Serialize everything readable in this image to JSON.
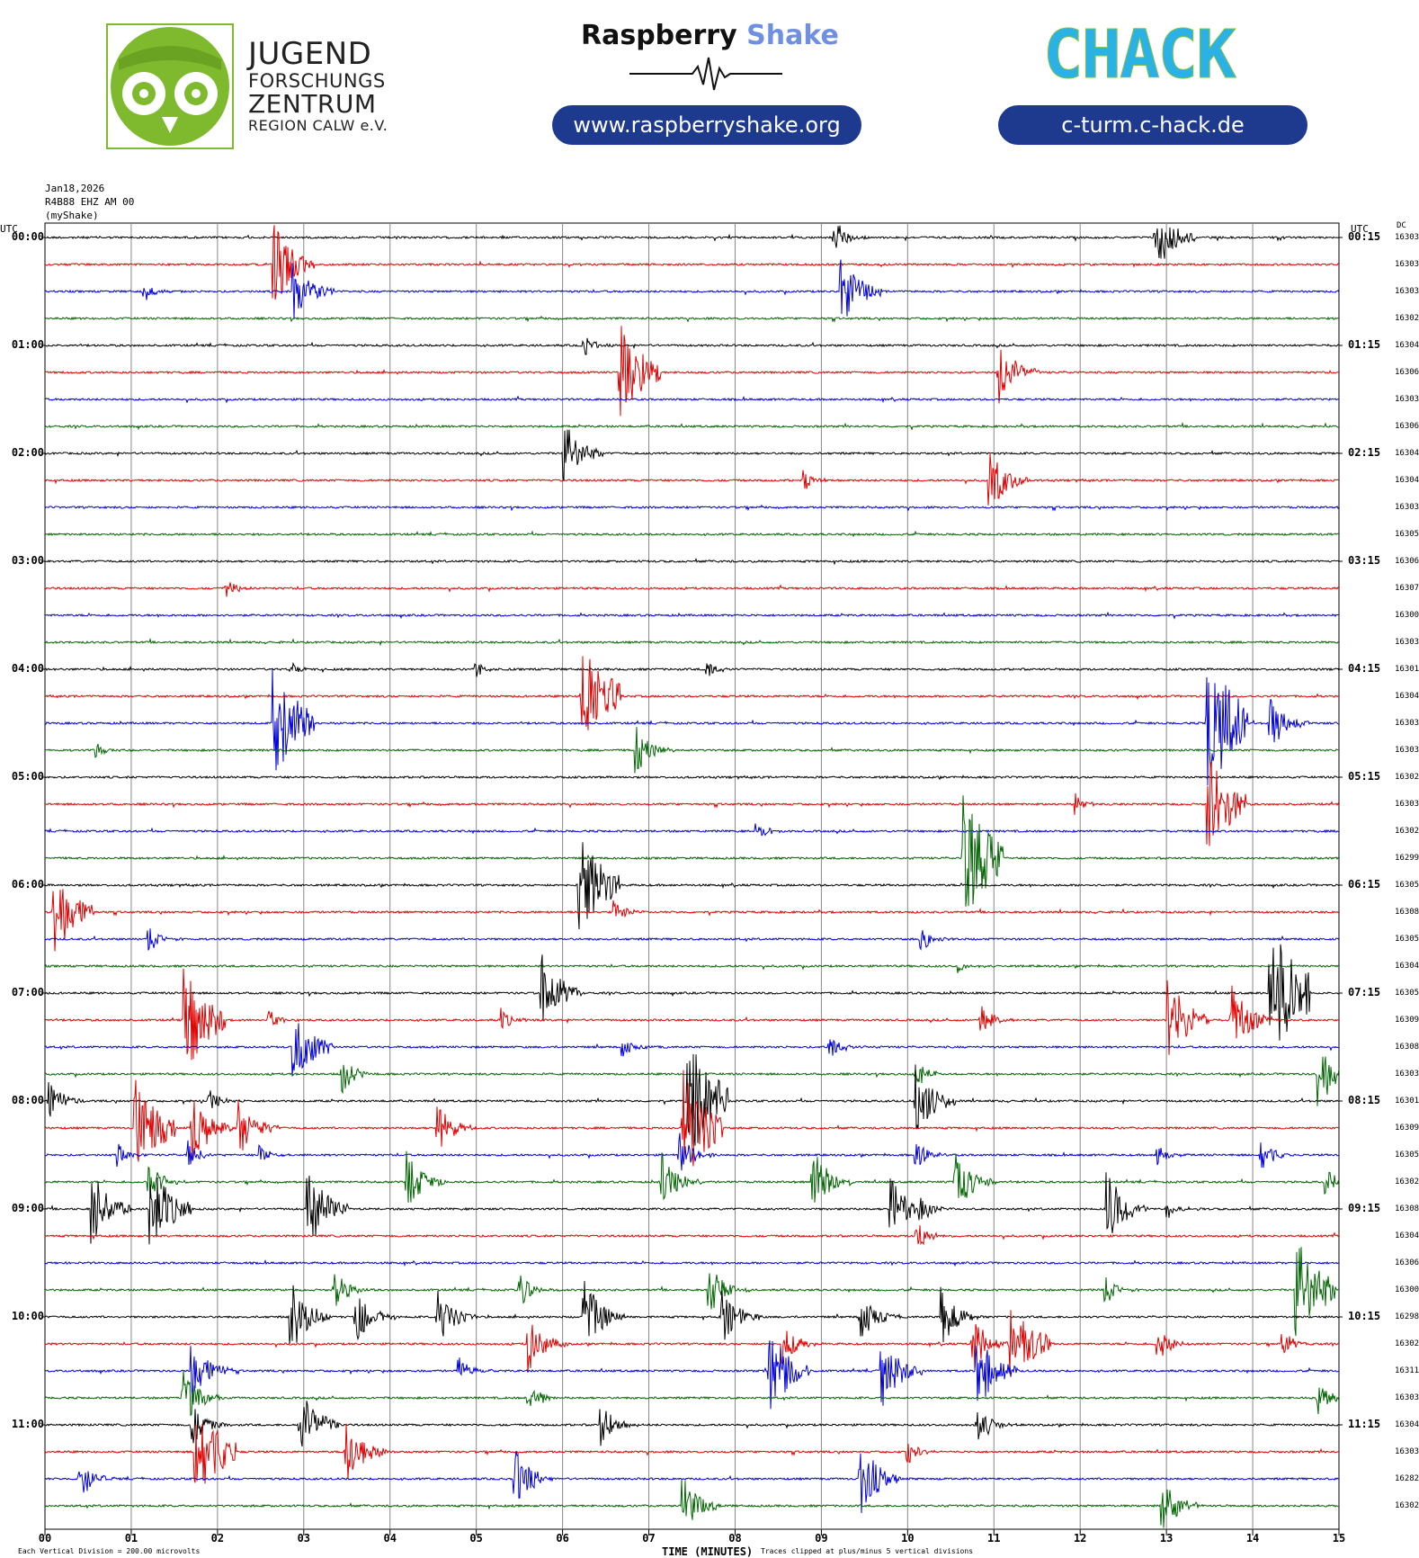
{
  "header": {
    "jfz": {
      "line1": "JUGEND",
      "line2": "FORSCHUNGS",
      "line3": "ZENTRUM",
      "line4": "REGION CALW e.V."
    },
    "raspberry": {
      "title_dark": "Raspberry",
      "title_light": "Shake",
      "url": "www.raspberryshake.org"
    },
    "chack": {
      "logo_text": "CHACK",
      "url": "c-turm.c-hack.de"
    }
  },
  "meta": {
    "date": "Jan18,2026",
    "station": "R4B88 EHZ AM 00",
    "source": "(myShake)",
    "utc_left": "UTC",
    "utc_right": "UTC",
    "dc_header": "DC"
  },
  "footer": {
    "x_axis_title": "TIME (MINUTES)",
    "scale_note": "Each Vertical Division = 200.00 microvolts",
    "clip_note": "Traces clipped at plus/minus 5 vertical divisions"
  },
  "colors": [
    "#000000",
    "#e00000",
    "#0000d8",
    "#006600"
  ],
  "chart_data": {
    "type": "helicorder",
    "x_ticks": [
      "00",
      "01",
      "02",
      "03",
      "04",
      "05",
      "06",
      "07",
      "08",
      "09",
      "10",
      "11",
      "12",
      "13",
      "14",
      "15"
    ],
    "xlim": [
      0,
      15
    ],
    "xlabel": "TIME (MINUTES)",
    "row_minutes": 15,
    "left_labels": [
      "00:00",
      "01:00",
      "02:00",
      "03:00",
      "04:00",
      "05:00",
      "06:00",
      "07:00",
      "08:00",
      "09:00",
      "10:00",
      "11:00"
    ],
    "right_labels": [
      "00:15",
      "01:15",
      "02:15",
      "03:15",
      "04:15",
      "05:15",
      "06:15",
      "07:15",
      "08:15",
      "09:15",
      "10:15",
      "11:15"
    ],
    "dc_values": [
      "16303",
      "16303",
      "16303",
      "16302",
      "16304",
      "16306",
      "16303",
      "16306",
      "16304",
      "16304",
      "16303",
      "16305",
      "16306",
      "16307",
      "16300",
      "16303",
      "16301",
      "16304",
      "16303",
      "16303",
      "16302",
      "16303",
      "16302",
      "16299",
      "16305",
      "16308",
      "16305",
      "16304",
      "16305",
      "16309",
      "16308",
      "16303",
      "16301",
      "16309",
      "16305",
      "16302",
      "16308",
      "16304",
      "16306",
      "16300",
      "16298",
      "16302",
      "16311",
      "16303",
      "16304",
      "16303",
      "16282",
      "16302"
    ],
    "events": [
      {
        "trace": 0,
        "minute": 9.15,
        "amp": 0.5
      },
      {
        "trace": 0,
        "minute": 12.87,
        "amp": 1.0
      },
      {
        "trace": 1,
        "minute": 2.65,
        "amp": 1.2
      },
      {
        "trace": 2,
        "minute": 1.15,
        "amp": 0.3
      },
      {
        "trace": 2,
        "minute": 2.88,
        "amp": 0.9
      },
      {
        "trace": 2,
        "minute": 9.23,
        "amp": 1.0
      },
      {
        "trace": 4,
        "minute": 6.25,
        "amp": 0.3
      },
      {
        "trace": 5,
        "minute": 6.67,
        "amp": 1.4
      },
      {
        "trace": 5,
        "minute": 11.05,
        "amp": 0.9
      },
      {
        "trace": 8,
        "minute": 6.02,
        "amp": 0.9
      },
      {
        "trace": 9,
        "minute": 8.8,
        "amp": 0.3
      },
      {
        "trace": 9,
        "minute": 10.95,
        "amp": 0.9
      },
      {
        "trace": 13,
        "minute": 2.1,
        "amp": 0.3
      },
      {
        "trace": 16,
        "minute": 2.85,
        "amp": 0.2
      },
      {
        "trace": 16,
        "minute": 5.0,
        "amp": 0.25
      },
      {
        "trace": 16,
        "minute": 7.68,
        "amp": 0.3
      },
      {
        "trace": 17,
        "minute": 6.22,
        "amp": 1.6
      },
      {
        "trace": 18,
        "minute": 2.65,
        "amp": 1.6
      },
      {
        "trace": 18,
        "minute": 14.2,
        "amp": 0.8
      },
      {
        "trace": 18,
        "minute": 13.47,
        "amp": 2.0
      },
      {
        "trace": 19,
        "minute": 6.85,
        "amp": 0.7
      },
      {
        "trace": 19,
        "minute": 0.6,
        "amp": 0.2
      },
      {
        "trace": 21,
        "minute": 13.47,
        "amp": 1.5
      },
      {
        "trace": 21,
        "minute": 11.95,
        "amp": 0.3
      },
      {
        "trace": 22,
        "minute": 8.25,
        "amp": 0.3
      },
      {
        "trace": 23,
        "minute": 10.65,
        "amp": 1.8
      },
      {
        "trace": 24,
        "minute": 6.2,
        "amp": 1.5
      },
      {
        "trace": 25,
        "minute": 0.1,
        "amp": 1.3
      },
      {
        "trace": 25,
        "minute": 6.6,
        "amp": 0.4
      },
      {
        "trace": 26,
        "minute": 1.2,
        "amp": 0.4
      },
      {
        "trace": 26,
        "minute": 10.15,
        "amp": 0.4
      },
      {
        "trace": 27,
        "minute": 10.6,
        "amp": 0.2
      },
      {
        "trace": 28,
        "minute": 5.75,
        "amp": 1.1
      },
      {
        "trace": 28,
        "minute": 14.2,
        "amp": 2.0
      },
      {
        "trace": 29,
        "minute": 1.62,
        "amp": 1.5
      },
      {
        "trace": 29,
        "minute": 2.6,
        "amp": 0.3
      },
      {
        "trace": 29,
        "minute": 5.3,
        "amp": 0.3
      },
      {
        "trace": 29,
        "minute": 10.85,
        "amp": 0.5
      },
      {
        "trace": 29,
        "minute": 13.02,
        "amp": 1.2
      },
      {
        "trace": 29,
        "minute": 13.75,
        "amp": 1.0
      },
      {
        "trace": 30,
        "minute": 2.88,
        "amp": 1.1
      },
      {
        "trace": 30,
        "minute": 6.7,
        "amp": 0.3
      },
      {
        "trace": 30,
        "minute": 9.1,
        "amp": 0.4
      },
      {
        "trace": 31,
        "minute": 3.45,
        "amp": 0.5
      },
      {
        "trace": 31,
        "minute": 10.1,
        "amp": 0.4
      },
      {
        "trace": 31,
        "minute": 14.75,
        "amp": 1.0
      },
      {
        "trace": 32,
        "minute": 0.05,
        "amp": 0.6
      },
      {
        "trace": 32,
        "minute": 1.9,
        "amp": 0.4
      },
      {
        "trace": 32,
        "minute": 7.45,
        "amp": 1.8
      },
      {
        "trace": 32,
        "minute": 10.1,
        "amp": 1.0
      },
      {
        "trace": 33,
        "minute": 1.05,
        "amp": 1.4
      },
      {
        "trace": 33,
        "minute": 1.7,
        "amp": 1.0
      },
      {
        "trace": 33,
        "minute": 2.25,
        "amp": 0.8
      },
      {
        "trace": 33,
        "minute": 4.55,
        "amp": 0.7
      },
      {
        "trace": 33,
        "minute": 7.4,
        "amp": 1.6
      },
      {
        "trace": 34,
        "minute": 0.85,
        "amp": 0.3
      },
      {
        "trace": 34,
        "minute": 1.65,
        "amp": 0.4
      },
      {
        "trace": 34,
        "minute": 2.5,
        "amp": 0.3
      },
      {
        "trace": 34,
        "minute": 7.35,
        "amp": 0.6
      },
      {
        "trace": 34,
        "minute": 10.1,
        "amp": 0.4
      },
      {
        "trace": 34,
        "minute": 12.9,
        "amp": 0.3
      },
      {
        "trace": 34,
        "minute": 14.1,
        "amp": 0.5
      },
      {
        "trace": 35,
        "minute": 1.2,
        "amp": 0.6
      },
      {
        "trace": 35,
        "minute": 4.2,
        "amp": 0.8
      },
      {
        "trace": 35,
        "minute": 7.15,
        "amp": 0.8
      },
      {
        "trace": 35,
        "minute": 8.9,
        "amp": 0.9
      },
      {
        "trace": 35,
        "minute": 10.55,
        "amp": 0.9
      },
      {
        "trace": 35,
        "minute": 14.85,
        "amp": 0.4
      },
      {
        "trace": 36,
        "minute": 0.55,
        "amp": 1.0
      },
      {
        "trace": 36,
        "minute": 1.22,
        "amp": 1.2
      },
      {
        "trace": 36,
        "minute": 3.05,
        "amp": 1.1
      },
      {
        "trace": 36,
        "minute": 9.8,
        "amp": 0.9
      },
      {
        "trace": 36,
        "minute": 10.15,
        "amp": 0.4
      },
      {
        "trace": 36,
        "minute": 12.32,
        "amp": 1.0
      },
      {
        "trace": 36,
        "minute": 13.0,
        "amp": 0.3
      },
      {
        "trace": 37,
        "minute": 10.1,
        "amp": 0.5
      },
      {
        "trace": 39,
        "minute": 3.35,
        "amp": 0.6
      },
      {
        "trace": 39,
        "minute": 5.5,
        "amp": 0.5
      },
      {
        "trace": 39,
        "minute": 7.7,
        "amp": 0.7
      },
      {
        "trace": 39,
        "minute": 12.3,
        "amp": 0.4
      },
      {
        "trace": 39,
        "minute": 14.5,
        "amp": 1.5
      },
      {
        "trace": 40,
        "minute": 2.85,
        "amp": 1.0
      },
      {
        "trace": 40,
        "minute": 3.6,
        "amp": 0.8
      },
      {
        "trace": 40,
        "minute": 4.55,
        "amp": 0.8
      },
      {
        "trace": 40,
        "minute": 6.25,
        "amp": 1.0
      },
      {
        "trace": 40,
        "minute": 7.85,
        "amp": 0.8
      },
      {
        "trace": 40,
        "minute": 9.45,
        "amp": 0.7
      },
      {
        "trace": 40,
        "minute": 10.4,
        "amp": 0.8
      },
      {
        "trace": 41,
        "minute": 5.6,
        "amp": 0.8
      },
      {
        "trace": 41,
        "minute": 8.55,
        "amp": 0.6
      },
      {
        "trace": 41,
        "minute": 10.75,
        "amp": 0.8
      },
      {
        "trace": 41,
        "minute": 11.2,
        "amp": 1.3
      },
      {
        "trace": 41,
        "minute": 12.9,
        "amp": 0.5
      },
      {
        "trace": 41,
        "minute": 14.35,
        "amp": 0.4
      },
      {
        "trace": 42,
        "minute": 1.7,
        "amp": 0.9
      },
      {
        "trace": 42,
        "minute": 4.8,
        "amp": 0.4
      },
      {
        "trace": 42,
        "minute": 8.4,
        "amp": 1.2
      },
      {
        "trace": 42,
        "minute": 9.7,
        "amp": 1.0
      },
      {
        "trace": 42,
        "minute": 10.8,
        "amp": 1.1
      },
      {
        "trace": 43,
        "minute": 1.6,
        "amp": 0.8
      },
      {
        "trace": 43,
        "minute": 5.6,
        "amp": 0.5
      },
      {
        "trace": 43,
        "minute": 14.75,
        "amp": 0.5
      },
      {
        "trace": 44,
        "minute": 1.7,
        "amp": 0.6
      },
      {
        "trace": 44,
        "minute": 2.95,
        "amp": 1.0
      },
      {
        "trace": 44,
        "minute": 6.45,
        "amp": 0.6
      },
      {
        "trace": 44,
        "minute": 10.8,
        "amp": 0.6
      },
      {
        "trace": 45,
        "minute": 1.75,
        "amp": 1.5
      },
      {
        "trace": 45,
        "minute": 3.5,
        "amp": 0.9
      },
      {
        "trace": 45,
        "minute": 10.0,
        "amp": 0.4
      },
      {
        "trace": 46,
        "minute": 0.4,
        "amp": 0.6
      },
      {
        "trace": 46,
        "minute": 5.45,
        "amp": 0.8
      },
      {
        "trace": 46,
        "minute": 9.45,
        "amp": 1.0
      },
      {
        "trace": 47,
        "minute": 7.4,
        "amp": 0.8
      },
      {
        "trace": 47,
        "minute": 12.95,
        "amp": 0.8
      }
    ]
  }
}
